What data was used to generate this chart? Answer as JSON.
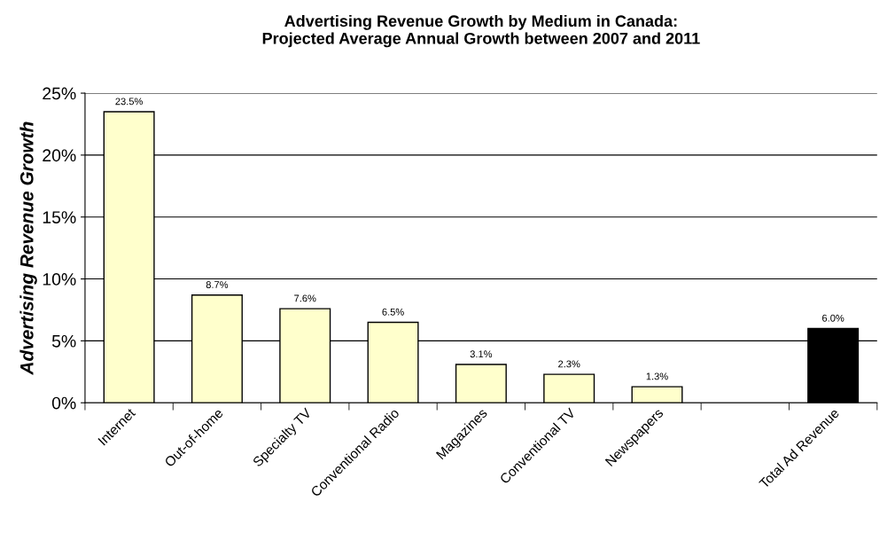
{
  "chart_data": {
    "type": "bar",
    "title": "Advertising Revenue Growth by Medium in Canada:\nProjected Average Annual Growth between 2007 and 2011",
    "ylabel": "Advertising Revenue Growth",
    "categories": [
      "Internet",
      "Out-of-home",
      "Specialty TV",
      "Conventional Radio",
      "Magazines",
      "Conventional TV",
      "Newspapers",
      null,
      "Total Ad Revenue"
    ],
    "values": [
      23.5,
      8.7,
      7.6,
      6.5,
      3.1,
      2.3,
      1.3,
      null,
      6.0
    ],
    "colors": [
      "#ffffcc",
      "#ffffcc",
      "#ffffcc",
      "#ffffcc",
      "#ffffcc",
      "#ffffcc",
      "#ffffcc",
      "#ffffcc",
      "#000000"
    ],
    "value_labels": [
      "23.5%",
      "8.7%",
      "7.6%",
      "6.5%",
      "3.1%",
      "2.3%",
      "1.3%",
      null,
      "6.0%"
    ],
    "ylim": [
      0,
      25
    ],
    "yticks": [
      {
        "value": 0,
        "label": "0%"
      },
      {
        "value": 5,
        "label": "5%"
      },
      {
        "value": 10,
        "label": "10%"
      },
      {
        "value": 15,
        "label": "15%"
      },
      {
        "value": 20,
        "label": "20%"
      },
      {
        "value": 25,
        "label": "25%"
      }
    ],
    "grid": "y"
  }
}
